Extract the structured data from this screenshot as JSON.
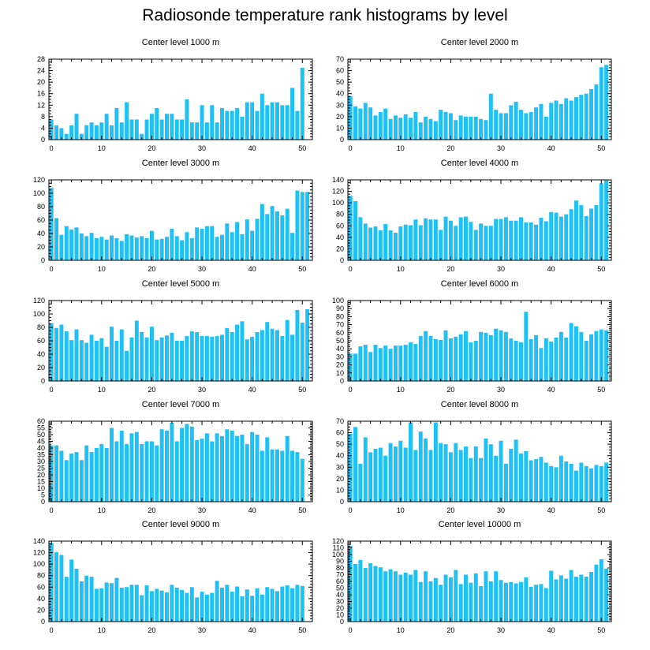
{
  "title": "Radiosonde temperature rank histograms by level",
  "bar_color": "#1EC1F5",
  "axis_color": "#000000",
  "chart_data": [
    {
      "type": "bar",
      "title": "Center level 1000 m",
      "xlim": [
        -0.5,
        52
      ],
      "xticks": [
        0,
        10,
        20,
        30,
        40,
        50
      ],
      "ylim": [
        0,
        28
      ],
      "yticks": [
        0,
        4,
        8,
        12,
        16,
        20,
        24,
        28
      ],
      "x": [
        0,
        1,
        2,
        3,
        4,
        5,
        6,
        7,
        8,
        9,
        10,
        11,
        12,
        13,
        14,
        15,
        16,
        17,
        18,
        19,
        20,
        21,
        22,
        23,
        24,
        25,
        26,
        27,
        28,
        29,
        30,
        31,
        32,
        33,
        34,
        35,
        36,
        37,
        38,
        39,
        40,
        41,
        42,
        43,
        44,
        45,
        46,
        47,
        48,
        49,
        50,
        51
      ],
      "values": [
        7,
        5,
        4,
        2,
        5,
        9,
        2,
        5,
        6,
        5,
        6,
        9,
        5,
        11,
        6,
        13,
        7,
        7,
        2,
        7,
        9,
        11,
        7,
        9,
        9,
        7,
        7,
        14,
        6,
        6,
        12,
        6,
        12,
        6,
        11,
        10,
        10,
        11,
        8,
        13,
        13,
        10,
        16,
        12,
        13,
        13,
        12,
        12,
        18,
        10,
        25,
        0
      ]
    },
    {
      "type": "bar",
      "title": "Center level 2000 m",
      "xlim": [
        -0.5,
        52
      ],
      "xticks": [
        0,
        10,
        20,
        30,
        40,
        50
      ],
      "ylim": [
        0,
        70
      ],
      "yticks": [
        0,
        10,
        20,
        30,
        40,
        50,
        60,
        70
      ],
      "x": [
        0,
        1,
        2,
        3,
        4,
        5,
        6,
        7,
        8,
        9,
        10,
        11,
        12,
        13,
        14,
        15,
        16,
        17,
        18,
        19,
        20,
        21,
        22,
        23,
        24,
        25,
        26,
        27,
        28,
        29,
        30,
        31,
        32,
        33,
        34,
        35,
        36,
        37,
        38,
        39,
        40,
        41,
        42,
        43,
        44,
        45,
        46,
        47,
        48,
        49,
        50,
        51
      ],
      "values": [
        38,
        29,
        27,
        32,
        28,
        21,
        24,
        27,
        18,
        21,
        19,
        22,
        19,
        24,
        15,
        20,
        18,
        16,
        26,
        24,
        23,
        17,
        21,
        20,
        20,
        20,
        18,
        17,
        40,
        26,
        23,
        23,
        30,
        33,
        26,
        23,
        24,
        28,
        31,
        20,
        32,
        34,
        31,
        36,
        34,
        37,
        39,
        40,
        44,
        48,
        63,
        65
      ]
    },
    {
      "type": "bar",
      "title": "Center level 3000 m",
      "xlim": [
        -0.5,
        52
      ],
      "xticks": [
        0,
        10,
        20,
        30,
        40,
        50
      ],
      "ylim": [
        0,
        120
      ],
      "yticks": [
        0,
        20,
        40,
        60,
        80,
        100,
        120
      ],
      "x": [
        0,
        1,
        2,
        3,
        4,
        5,
        6,
        7,
        8,
        9,
        10,
        11,
        12,
        13,
        14,
        15,
        16,
        17,
        18,
        19,
        20,
        21,
        22,
        23,
        24,
        25,
        26,
        27,
        28,
        29,
        30,
        31,
        32,
        33,
        34,
        35,
        36,
        37,
        38,
        39,
        40,
        41,
        42,
        43,
        44,
        45,
        46,
        47,
        48,
        49,
        50,
        51
      ],
      "values": [
        108,
        63,
        38,
        51,
        46,
        49,
        40,
        36,
        41,
        33,
        35,
        31,
        37,
        33,
        29,
        39,
        37,
        34,
        36,
        33,
        44,
        31,
        32,
        35,
        47,
        36,
        30,
        42,
        33,
        49,
        47,
        51,
        51,
        35,
        38,
        55,
        42,
        57,
        39,
        61,
        44,
        62,
        84,
        69,
        81,
        73,
        67,
        77,
        41,
        104,
        102,
        102
      ]
    },
    {
      "type": "bar",
      "title": "Center level 4000 m",
      "xlim": [
        -0.5,
        52
      ],
      "xticks": [
        0,
        10,
        20,
        30,
        40,
        50
      ],
      "ylim": [
        0,
        140
      ],
      "yticks": [
        0,
        20,
        40,
        60,
        80,
        100,
        120,
        140
      ],
      "x": [
        0,
        1,
        2,
        3,
        4,
        5,
        6,
        7,
        8,
        9,
        10,
        11,
        12,
        13,
        14,
        15,
        16,
        17,
        18,
        19,
        20,
        21,
        22,
        23,
        24,
        25,
        26,
        27,
        28,
        29,
        30,
        31,
        32,
        33,
        34,
        35,
        36,
        37,
        38,
        39,
        40,
        41,
        42,
        43,
        44,
        45,
        46,
        47,
        48,
        49,
        50,
        51
      ],
      "values": [
        112,
        103,
        75,
        64,
        57,
        59,
        52,
        63,
        52,
        48,
        59,
        62,
        61,
        71,
        61,
        73,
        71,
        71,
        53,
        76,
        69,
        60,
        75,
        76,
        67,
        53,
        64,
        60,
        60,
        72,
        72,
        75,
        69,
        69,
        75,
        66,
        66,
        62,
        74,
        68,
        84,
        83,
        76,
        80,
        89,
        104,
        96,
        77,
        90,
        96,
        134,
        139
      ]
    },
    {
      "type": "bar",
      "title": "Center level 5000 m",
      "xlim": [
        -0.5,
        52
      ],
      "xticks": [
        0,
        10,
        20,
        30,
        40,
        50
      ],
      "ylim": [
        0,
        120
      ],
      "yticks": [
        0,
        20,
        40,
        60,
        80,
        100,
        120
      ],
      "x": [
        0,
        1,
        2,
        3,
        4,
        5,
        6,
        7,
        8,
        9,
        10,
        11,
        12,
        13,
        14,
        15,
        16,
        17,
        18,
        19,
        20,
        21,
        22,
        23,
        24,
        25,
        26,
        27,
        28,
        29,
        30,
        31,
        32,
        33,
        34,
        35,
        36,
        37,
        38,
        39,
        40,
        41,
        42,
        43,
        44,
        45,
        46,
        47,
        48,
        49,
        50,
        51
      ],
      "values": [
        86,
        79,
        84,
        74,
        61,
        77,
        61,
        57,
        69,
        60,
        64,
        51,
        81,
        60,
        77,
        45,
        65,
        90,
        73,
        65,
        81,
        61,
        65,
        68,
        72,
        60,
        60,
        67,
        74,
        73,
        67,
        67,
        66,
        67,
        69,
        79,
        73,
        84,
        89,
        62,
        66,
        73,
        76,
        88,
        78,
        76,
        67,
        91,
        69,
        106,
        87,
        107
      ]
    },
    {
      "type": "bar",
      "title": "Center level 6000 m",
      "xlim": [
        -0.5,
        52
      ],
      "xticks": [
        0,
        10,
        20,
        30,
        40,
        50
      ],
      "ylim": [
        0,
        100
      ],
      "yticks": [
        0,
        10,
        20,
        30,
        40,
        50,
        60,
        70,
        80,
        90,
        100
      ],
      "x": [
        0,
        1,
        2,
        3,
        4,
        5,
        6,
        7,
        8,
        9,
        10,
        11,
        12,
        13,
        14,
        15,
        16,
        17,
        18,
        19,
        20,
        21,
        22,
        23,
        24,
        25,
        26,
        27,
        28,
        29,
        30,
        31,
        32,
        33,
        34,
        35,
        36,
        37,
        38,
        39,
        40,
        41,
        42,
        43,
        44,
        45,
        46,
        47,
        48,
        49,
        50,
        51
      ],
      "values": [
        34,
        34,
        43,
        45,
        36,
        45,
        41,
        44,
        40,
        44,
        44,
        45,
        48,
        46,
        56,
        62,
        56,
        52,
        51,
        63,
        53,
        55,
        58,
        62,
        48,
        50,
        61,
        60,
        57,
        65,
        63,
        61,
        53,
        50,
        48,
        86,
        52,
        57,
        41,
        53,
        49,
        54,
        61,
        54,
        72,
        68,
        61,
        50,
        58,
        62,
        64,
        63
      ]
    },
    {
      "type": "bar",
      "title": "Center level 7000 m",
      "xlim": [
        -0.5,
        52
      ],
      "xticks": [
        0,
        10,
        20,
        30,
        40,
        50
      ],
      "ylim": [
        0,
        60
      ],
      "yticks": [
        0,
        5,
        10,
        15,
        20,
        25,
        30,
        35,
        40,
        45,
        50,
        55,
        60
      ],
      "x": [
        0,
        1,
        2,
        3,
        4,
        5,
        6,
        7,
        8,
        9,
        10,
        11,
        12,
        13,
        14,
        15,
        16,
        17,
        18,
        19,
        20,
        21,
        22,
        23,
        24,
        25,
        26,
        27,
        28,
        29,
        30,
        31,
        32,
        33,
        34,
        35,
        36,
        37,
        38,
        39,
        40,
        41,
        42,
        43,
        44,
        45,
        46,
        47,
        48,
        49,
        50,
        51
      ],
      "values": [
        42,
        42,
        38,
        31,
        36,
        37,
        31,
        42,
        37,
        40,
        43,
        40,
        55,
        45,
        53,
        43,
        51,
        52,
        43,
        45,
        45,
        42,
        54,
        53,
        59,
        45,
        55,
        58,
        56,
        46,
        47,
        51,
        45,
        51,
        49,
        54,
        53,
        49,
        50,
        43,
        52,
        50,
        38,
        48,
        39,
        39,
        38,
        49,
        38,
        37,
        32,
        0
      ]
    },
    {
      "type": "bar",
      "title": "Center level 8000 m",
      "xlim": [
        -0.5,
        52
      ],
      "xticks": [
        0,
        10,
        20,
        30,
        40,
        50
      ],
      "ylim": [
        0,
        70
      ],
      "yticks": [
        0,
        10,
        20,
        30,
        40,
        50,
        60,
        70
      ],
      "x": [
        0,
        1,
        2,
        3,
        4,
        5,
        6,
        7,
        8,
        9,
        10,
        11,
        12,
        13,
        14,
        15,
        16,
        17,
        18,
        19,
        20,
        21,
        22,
        23,
        24,
        25,
        26,
        27,
        28,
        29,
        30,
        31,
        32,
        33,
        34,
        35,
        36,
        37,
        38,
        39,
        40,
        41,
        42,
        43,
        44,
        45,
        46,
        47,
        48,
        49,
        50,
        51
      ],
      "values": [
        59,
        65,
        33,
        56,
        43,
        46,
        47,
        40,
        51,
        48,
        53,
        47,
        69,
        45,
        61,
        55,
        45,
        69,
        51,
        50,
        43,
        51,
        45,
        48,
        38,
        48,
        38,
        55,
        50,
        40,
        53,
        33,
        46,
        54,
        42,
        44,
        36,
        37,
        39,
        34,
        31,
        30,
        40,
        35,
        33,
        27,
        34,
        31,
        29,
        32,
        31,
        34
      ]
    },
    {
      "type": "bar",
      "title": "Center level 9000 m",
      "xlim": [
        -0.5,
        52
      ],
      "xticks": [
        0,
        10,
        20,
        30,
        40,
        50
      ],
      "ylim": [
        0,
        140
      ],
      "yticks": [
        0,
        20,
        40,
        60,
        80,
        100,
        120,
        140
      ],
      "x": [
        0,
        1,
        2,
        3,
        4,
        5,
        6,
        7,
        8,
        9,
        10,
        11,
        12,
        13,
        14,
        15,
        16,
        17,
        18,
        19,
        20,
        21,
        22,
        23,
        24,
        25,
        26,
        27,
        28,
        29,
        30,
        31,
        32,
        33,
        34,
        35,
        36,
        37,
        38,
        39,
        40,
        41,
        42,
        43,
        44,
        45,
        46,
        47,
        48,
        49,
        50,
        51
      ],
      "values": [
        137,
        121,
        116,
        78,
        108,
        92,
        70,
        80,
        78,
        57,
        58,
        68,
        67,
        76,
        59,
        60,
        64,
        64,
        46,
        63,
        53,
        57,
        54,
        51,
        64,
        59,
        55,
        50,
        60,
        42,
        52,
        47,
        50,
        71,
        59,
        64,
        52,
        61,
        44,
        56,
        45,
        58,
        47,
        60,
        57,
        53,
        61,
        63,
        58,
        64,
        62,
        0
      ]
    },
    {
      "type": "bar",
      "title": "Center level 10000 m",
      "xlim": [
        -0.5,
        52
      ],
      "xticks": [
        0,
        10,
        20,
        30,
        40,
        50
      ],
      "ylim": [
        0,
        120
      ],
      "yticks": [
        0,
        10,
        20,
        30,
        40,
        50,
        60,
        70,
        80,
        90,
        100,
        110,
        120
      ],
      "x": [
        0,
        1,
        2,
        3,
        4,
        5,
        6,
        7,
        8,
        9,
        10,
        11,
        12,
        13,
        14,
        15,
        16,
        17,
        18,
        19,
        20,
        21,
        22,
        23,
        24,
        25,
        26,
        27,
        28,
        29,
        30,
        31,
        32,
        33,
        34,
        35,
        36,
        37,
        38,
        39,
        40,
        41,
        42,
        43,
        44,
        45,
        46,
        47,
        48,
        49,
        50,
        51
      ],
      "values": [
        113,
        86,
        92,
        80,
        87,
        83,
        81,
        75,
        78,
        75,
        70,
        73,
        70,
        77,
        59,
        75,
        60,
        65,
        55,
        70,
        66,
        77,
        56,
        70,
        58,
        72,
        53,
        75,
        60,
        75,
        62,
        58,
        59,
        57,
        59,
        66,
        52,
        55,
        56,
        50,
        76,
        63,
        69,
        64,
        77,
        67,
        70,
        67,
        74,
        85,
        93,
        79
      ]
    }
  ]
}
